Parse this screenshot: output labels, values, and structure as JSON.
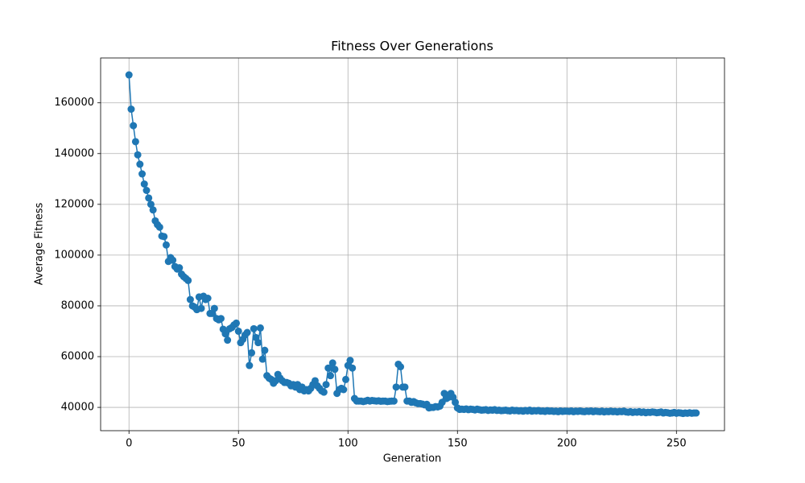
{
  "chart_data": {
    "type": "line",
    "title": "Fitness Over Generations",
    "xlabel": "Generation",
    "ylabel": "Average Fitness",
    "color": "#1f77b4",
    "marker": "o",
    "grid": true,
    "xlim": [
      -12.95,
      271.95
    ],
    "xticks": [
      0,
      50,
      100,
      150,
      200,
      250
    ],
    "ylim": [
      30825,
      177675
    ],
    "yticks": [
      40000,
      60000,
      80000,
      100000,
      120000,
      140000,
      160000
    ],
    "x": [
      0,
      1,
      2,
      3,
      4,
      5,
      6,
      7,
      8,
      9,
      10,
      11,
      12,
      13,
      14,
      15,
      16,
      17,
      18,
      19,
      20,
      21,
      22,
      23,
      24,
      25,
      26,
      27,
      28,
      29,
      30,
      31,
      32,
      33,
      34,
      35,
      36,
      37,
      38,
      39,
      40,
      41,
      42,
      43,
      44,
      45,
      46,
      47,
      48,
      49,
      50,
      51,
      52,
      53,
      54,
      55,
      56,
      57,
      58,
      59,
      60,
      61,
      62,
      63,
      64,
      65,
      66,
      67,
      68,
      69,
      70,
      71,
      72,
      73,
      74,
      75,
      76,
      77,
      78,
      79,
      80,
      81,
      82,
      83,
      84,
      85,
      86,
      87,
      88,
      89,
      90,
      91,
      92,
      93,
      94,
      95,
      96,
      97,
      98,
      99,
      100,
      101,
      102,
      103,
      104,
      105,
      106,
      107,
      108,
      109,
      110,
      111,
      112,
      113,
      114,
      115,
      116,
      117,
      118,
      119,
      120,
      121,
      122,
      123,
      124,
      125,
      126,
      127,
      128,
      129,
      130,
      131,
      132,
      133,
      134,
      135,
      136,
      137,
      138,
      139,
      140,
      141,
      142,
      143,
      144,
      145,
      146,
      147,
      148,
      149,
      150,
      151,
      152,
      153,
      154,
      155,
      156,
      157,
      158,
      159,
      160,
      161,
      162,
      163,
      164,
      165,
      166,
      167,
      168,
      169,
      170,
      171,
      172,
      173,
      174,
      175,
      176,
      177,
      178,
      179,
      180,
      181,
      182,
      183,
      184,
      185,
      186,
      187,
      188,
      189,
      190,
      191,
      192,
      193,
      194,
      195,
      196,
      197,
      198,
      199,
      200,
      201,
      202,
      203,
      204,
      205,
      206,
      207,
      208,
      209,
      210,
      211,
      212,
      213,
      214,
      215,
      216,
      217,
      218,
      219,
      220,
      221,
      222,
      223,
      224,
      225,
      226,
      227,
      228,
      229,
      230,
      231,
      232,
      233,
      234,
      235,
      236,
      237,
      238,
      239,
      240,
      241,
      242,
      243,
      244,
      245,
      246,
      247,
      248,
      249,
      250,
      251,
      252,
      253,
      254,
      255,
      256,
      257,
      258,
      259
    ],
    "values": [
      171000,
      157500,
      151000,
      144700,
      139500,
      135800,
      132000,
      128000,
      125500,
      122500,
      120000,
      117800,
      113500,
      112000,
      111000,
      107500,
      107300,
      104000,
      97500,
      99000,
      98000,
      95500,
      94500,
      95000,
      92500,
      91500,
      90800,
      90000,
      82500,
      80000,
      79500,
      78500,
      83500,
      79000,
      83800,
      82500,
      83000,
      77000,
      77000,
      79000,
      75000,
      74500,
      75000,
      70800,
      69000,
      66500,
      71000,
      71500,
      72500,
      73200,
      70000,
      65500,
      66800,
      68500,
      69500,
      56500,
      61500,
      71000,
      67500,
      65500,
      71300,
      59000,
      62500,
      52500,
      51500,
      51000,
      49500,
      50500,
      53000,
      51500,
      50500,
      49800,
      49800,
      49500,
      48500,
      49000,
      48000,
      49000,
      47000,
      48000,
      46500,
      47000,
      46500,
      47500,
      49000,
      50500,
      48500,
      47500,
      46500,
      46000,
      49000,
      55500,
      52500,
      57500,
      55000,
      45500,
      47000,
      47500,
      47000,
      51000,
      56500,
      58500,
      55500,
      43500,
      42500,
      42500,
      42500,
      42300,
      42500,
      42800,
      42500,
      42700,
      42600,
      42500,
      42600,
      42400,
      42500,
      42500,
      42300,
      42400,
      42500,
      42500,
      48000,
      57000,
      56000,
      48000,
      48000,
      42500,
      42500,
      42000,
      42300,
      41800,
      41500,
      41500,
      41300,
      41000,
      41200,
      39800,
      40000,
      40000,
      40300,
      40200,
      40500,
      42000,
      45500,
      43500,
      44000,
      45500,
      44000,
      42000,
      39800,
      39200,
      39300,
      39200,
      39400,
      39100,
      39300,
      39200,
      39000,
      39300,
      39100,
      38900,
      39000,
      39100,
      38800,
      39000,
      38900,
      39100,
      38800,
      38900,
      38700,
      38800,
      38900,
      38700,
      38600,
      38900,
      38700,
      38800,
      38600,
      38700,
      38500,
      38800,
      38600,
      38900,
      38500,
      38700,
      38600,
      38800,
      38500,
      38600,
      38400,
      38700,
      38500,
      38600,
      38400,
      38500,
      38300,
      38600,
      38400,
      38500,
      38500,
      38400,
      38600,
      38300,
      38500,
      38400,
      38600,
      38400,
      38300,
      38500,
      38400,
      38600,
      38300,
      38500,
      38400,
      38300,
      38500,
      38200,
      38400,
      38300,
      38500,
      38300,
      38400,
      38200,
      38400,
      38300,
      38500,
      38200,
      38100,
      38300,
      38000,
      38200,
      38100,
      38300,
      38000,
      38200,
      37900,
      38100,
      38000,
      38200,
      38100,
      37900,
      38000,
      38200,
      37800,
      38000,
      37900,
      37700,
      37800,
      38000,
      37700,
      37900,
      37800,
      37600,
      37800,
      37700,
      37900,
      37700,
      37800,
      37800
    ]
  }
}
